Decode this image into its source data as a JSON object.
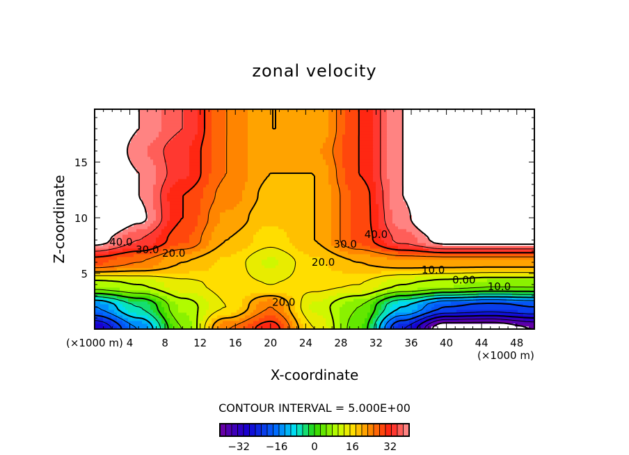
{
  "chart_data": {
    "type": "heatmap",
    "subtype": "filled-contour",
    "title": "zonal velocity",
    "xlabel": "X-coordinate",
    "ylabel": "Z-coordinate",
    "x_unit_label": "(×1000 m)",
    "x_unit_label_right": "(×1000 m)",
    "xlim": [
      0,
      50
    ],
    "ylim": [
      0,
      19.75
    ],
    "xticks": [
      4,
      8,
      12,
      16,
      20,
      24,
      28,
      32,
      36,
      40,
      44,
      48
    ],
    "yticks": [
      5,
      10,
      15
    ],
    "contour_interval_label": "CONTOUR INTERVAL = 5.000E+00",
    "contour_interval": 5,
    "colorbar": {
      "range": [
        -40,
        40
      ],
      "ticks": [
        -32,
        -16,
        0,
        16,
        32
      ],
      "tick_labels": [
        "−32",
        "−16",
        "0",
        "16",
        "32"
      ]
    },
    "contour_labels": [
      {
        "text": "40.0",
        "x": 3,
        "z": 7.5
      },
      {
        "text": "30.0",
        "x": 6,
        "z": 6.8
      },
      {
        "text": "20.0",
        "x": 9,
        "z": 6.5
      },
      {
        "text": "40.0",
        "x": 32,
        "z": 8.2
      },
      {
        "text": "30.0",
        "x": 28.5,
        "z": 7.3
      },
      {
        "text": "20.0",
        "x": 26,
        "z": 5.7
      },
      {
        "text": "10.0",
        "x": 38.5,
        "z": 5.0
      },
      {
        "text": "0.00",
        "x": 42,
        "z": 4.1
      },
      {
        "text": "10.0",
        "x": 46,
        "z": 3.5
      },
      {
        "text": "20.0",
        "x": 21.5,
        "z": 2.1
      }
    ],
    "grid_x": [
      0,
      5,
      10,
      15,
      20,
      25,
      30,
      35,
      40,
      45,
      50
    ],
    "grid_z": [
      0,
      2,
      4,
      6,
      8,
      10,
      12,
      14,
      16,
      18,
      20
    ],
    "values": [
      [
        -30,
        -15,
        5,
        25,
        32,
        15,
        3,
        -25,
        -45,
        -45,
        -40
      ],
      [
        -15,
        -5,
        8,
        15,
        25,
        12,
        5,
        -10,
        -20,
        -22,
        -20
      ],
      [
        8,
        10,
        14,
        16,
        15,
        16,
        15,
        10,
        8,
        6,
        6
      ],
      [
        28,
        25,
        20,
        17,
        12,
        17,
        20,
        22,
        22,
        22,
        22
      ],
      [
        42,
        35,
        28,
        20,
        16,
        20,
        28,
        36,
        42,
        42,
        42
      ],
      [
        50,
        41,
        30,
        22,
        18,
        20,
        28,
        39,
        50,
        50,
        50
      ],
      [
        50,
        40,
        30,
        24,
        19,
        20,
        28,
        40,
        50,
        50,
        50
      ],
      [
        50,
        40,
        33,
        25,
        20,
        20,
        30,
        40,
        50,
        50,
        50
      ],
      [
        50,
        38,
        33,
        25,
        20,
        22,
        30,
        40,
        50,
        50,
        50
      ],
      [
        50,
        40,
        35,
        25,
        20,
        20,
        30,
        40,
        50,
        50,
        50
      ],
      [
        50,
        40,
        35,
        25,
        20,
        20,
        30,
        40,
        50,
        50,
        50
      ]
    ]
  }
}
